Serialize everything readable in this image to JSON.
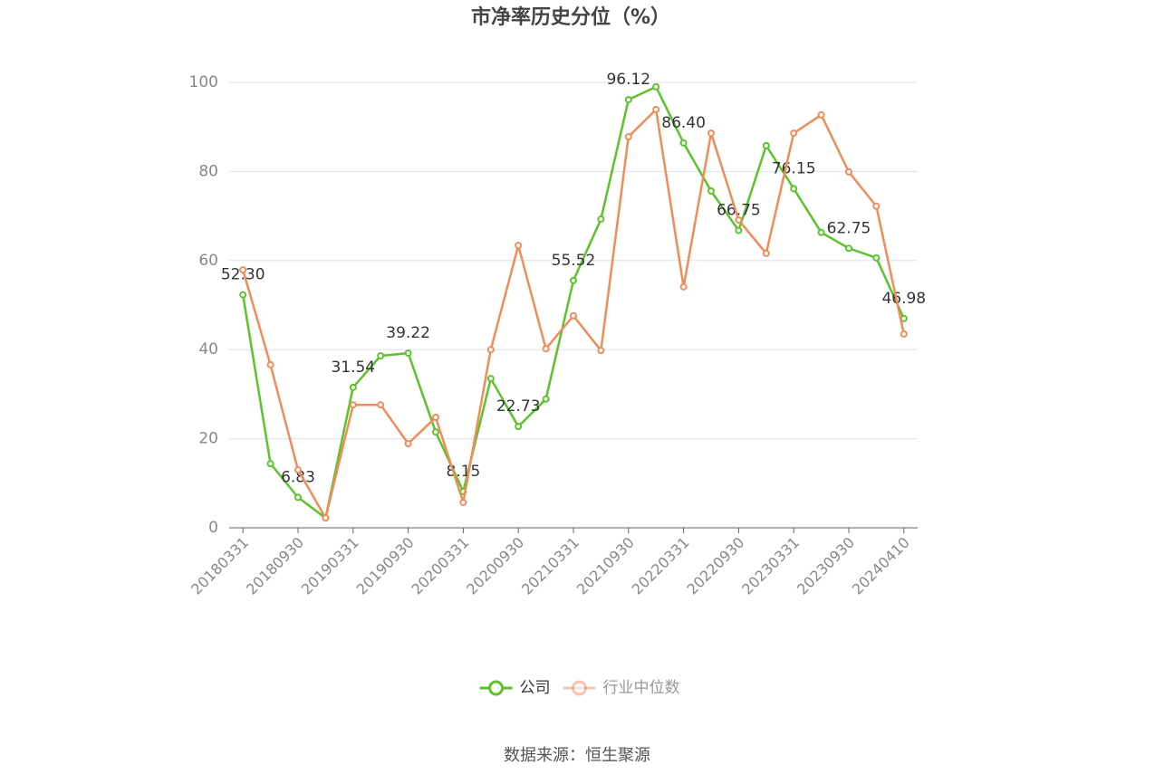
{
  "chart_data": {
    "type": "line",
    "title": "市净率历史分位（%）",
    "categories": [
      "20180331",
      null,
      "20180930",
      null,
      "20190331",
      null,
      "20190930",
      null,
      "20200331",
      null,
      "20200930",
      null,
      "20210331",
      null,
      "20210930",
      null,
      "20220331",
      null,
      "20220930",
      null,
      "20230331",
      null,
      "20230930",
      null,
      "20240410"
    ],
    "series": [
      {
        "name": "公司",
        "color": "#5ac42a",
        "values": [
          52.3,
          14.4,
          6.83,
          2.2,
          31.54,
          38.6,
          39.22,
          21.5,
          8.15,
          33.5,
          22.73,
          28.9,
          55.52,
          69.3,
          96.12,
          99.0,
          86.4,
          75.6,
          66.75,
          85.8,
          76.15,
          66.3,
          62.75,
          60.6,
          46.98
        ],
        "value_labels": [
          "52.30",
          null,
          "6.83",
          null,
          "31.54",
          null,
          "39.22",
          null,
          "8.15",
          null,
          "22.73",
          null,
          "55.52",
          null,
          "96.12",
          null,
          "86.40",
          null,
          "66.75",
          null,
          "76.15",
          null,
          "62.75",
          null,
          "46.98"
        ]
      },
      {
        "name": "行业中位数",
        "color": "#f08c5a",
        "values": [
          57.9,
          36.6,
          13.0,
          2.2,
          27.6,
          27.6,
          18.9,
          24.8,
          5.7,
          40.0,
          63.4,
          40.2,
          47.6,
          39.8,
          87.8,
          93.9,
          54.1,
          88.6,
          69.1,
          61.6,
          88.6,
          92.7,
          79.9,
          72.2,
          43.5
        ]
      }
    ],
    "ylim": [
      0,
      100
    ],
    "yticks": [
      0,
      20,
      40,
      60,
      80,
      100
    ],
    "grid": true,
    "legend": "bottom",
    "source": "数据来源：恒生聚源"
  }
}
